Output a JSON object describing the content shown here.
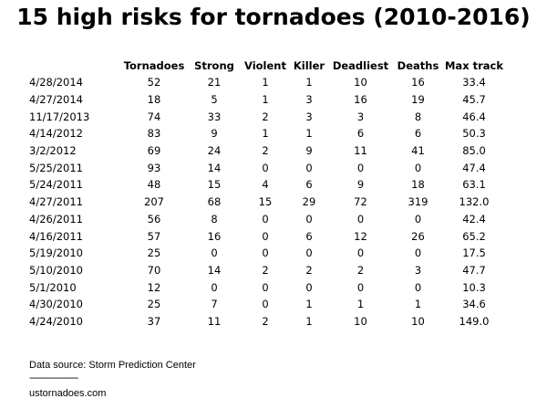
{
  "title": "15 high risks for tornadoes (2010-2016)",
  "table": {
    "headers": [
      "",
      "Tornadoes",
      "Strong",
      "Violent",
      "Killer",
      "Deadliest",
      "Deaths",
      "Max track"
    ],
    "rows": [
      [
        "4/28/2014",
        "52",
        "21",
        "1",
        "1",
        "10",
        "16",
        "33.4"
      ],
      [
        "4/27/2014",
        "18",
        "5",
        "1",
        "3",
        "16",
        "19",
        "45.7"
      ],
      [
        "11/17/2013",
        "74",
        "33",
        "2",
        "3",
        "3",
        "8",
        "46.4"
      ],
      [
        "4/14/2012",
        "83",
        "9",
        "1",
        "1",
        "6",
        "6",
        "50.3"
      ],
      [
        "3/2/2012",
        "69",
        "24",
        "2",
        "9",
        "11",
        "41",
        "85.0"
      ],
      [
        "5/25/2011",
        "93",
        "14",
        "0",
        "0",
        "0",
        "0",
        "47.4"
      ],
      [
        "5/24/2011",
        "48",
        "15",
        "4",
        "6",
        "9",
        "18",
        "63.1"
      ],
      [
        "4/27/2011",
        "207",
        "68",
        "15",
        "29",
        "72",
        "319",
        "132.0"
      ],
      [
        "4/26/2011",
        "56",
        "8",
        "0",
        "0",
        "0",
        "0",
        "42.4"
      ],
      [
        "4/16/2011",
        "57",
        "16",
        "0",
        "6",
        "12",
        "26",
        "65.2"
      ],
      [
        "5/19/2010",
        "25",
        "0",
        "0",
        "0",
        "0",
        "0",
        "17.5"
      ],
      [
        "5/10/2010",
        "70",
        "14",
        "2",
        "2",
        "2",
        "3",
        "47.7"
      ],
      [
        "5/1/2010",
        "12",
        "0",
        "0",
        "0",
        "0",
        "0",
        "10.3"
      ],
      [
        "4/30/2010",
        "25",
        "7",
        "0",
        "1",
        "1",
        "1",
        "34.6"
      ],
      [
        "4/24/2010",
        "37",
        "11",
        "2",
        "1",
        "10",
        "10",
        "149.0"
      ]
    ]
  },
  "footer": {
    "source": "Data source: Storm Prediction Center",
    "divider": "--------------------",
    "site": "ustornadoes.com"
  }
}
